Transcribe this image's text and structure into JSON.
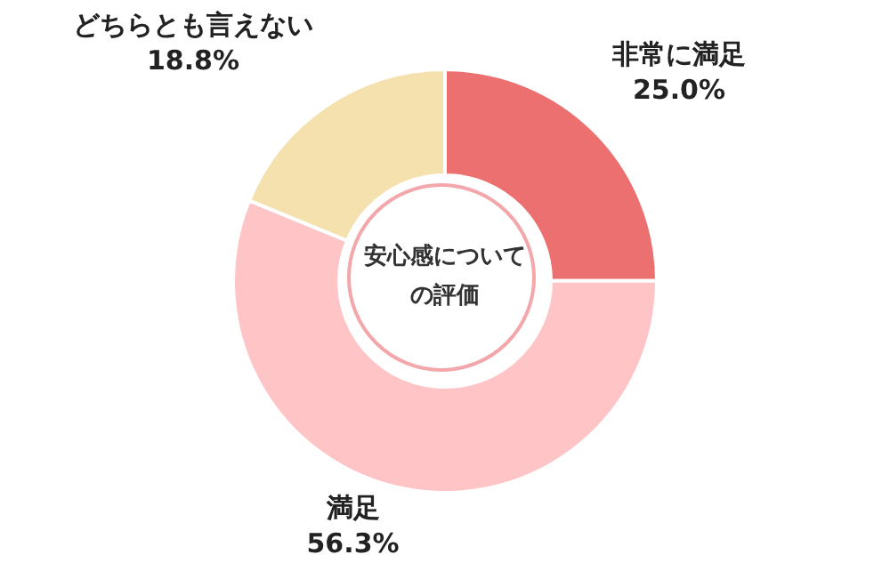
{
  "chart_data": {
    "type": "donut",
    "title": "安心感についての評価",
    "categories": [
      "非常に満足",
      "満足",
      "どちらとも言えない"
    ],
    "values": [
      25.0,
      56.3,
      18.8
    ],
    "colors": [
      "#ec7070",
      "#fec4c6",
      "#f5e1ae"
    ],
    "value_labels": [
      "25.0%",
      "56.3%",
      "18.8%"
    ],
    "legend": false
  }
}
